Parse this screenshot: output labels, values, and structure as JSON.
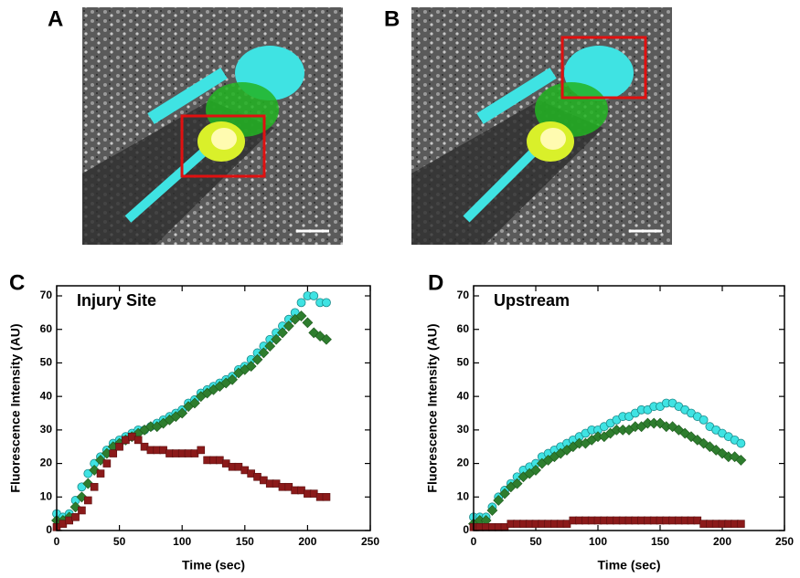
{
  "panels": [
    {
      "label": "A"
    },
    {
      "label": "B"
    }
  ],
  "chart_data": [
    {
      "type": "scatter",
      "panel_label": "C",
      "annotation": "Injury Site",
      "x_label": "Time (sec)",
      "y_label": "Fluorescence Intensity (AU)",
      "xlim": [
        0,
        250
      ],
      "ylim": [
        0,
        73
      ],
      "xticks": [
        0,
        50,
        100,
        150,
        200,
        250
      ],
      "yticks": [
        0,
        10,
        20,
        30,
        40,
        50,
        60,
        70
      ],
      "x": [
        0,
        5,
        10,
        15,
        20,
        25,
        30,
        35,
        40,
        45,
        50,
        55,
        60,
        65,
        70,
        75,
        80,
        85,
        90,
        95,
        100,
        105,
        110,
        115,
        120,
        125,
        130,
        135,
        140,
        145,
        150,
        155,
        160,
        165,
        170,
        175,
        180,
        185,
        190,
        195,
        200,
        205,
        210,
        215
      ],
      "series": [
        {
          "color": "#3fe3e3",
          "marker": "circle",
          "values": [
            5,
            4,
            5,
            9,
            13,
            17,
            20,
            22,
            24,
            26,
            27,
            28,
            29,
            30,
            30,
            31,
            32,
            33,
            34,
            35,
            36,
            38,
            39,
            41,
            42,
            43,
            44,
            45,
            46,
            48,
            49,
            51,
            53,
            55,
            57,
            59,
            61,
            63,
            65,
            68,
            70,
            70,
            68,
            68
          ]
        },
        {
          "color": "#2e7d2e",
          "marker": "diamond",
          "values": [
            3,
            3,
            4,
            7,
            10,
            14,
            18,
            21,
            23,
            25,
            26,
            27,
            28,
            29,
            30,
            31,
            31,
            32,
            33,
            34,
            35,
            37,
            38,
            40,
            41,
            42,
            43,
            44,
            45,
            47,
            48,
            49,
            51,
            53,
            55,
            57,
            59,
            61,
            63,
            64,
            62,
            59,
            58,
            57
          ]
        },
        {
          "color": "#8b1a1a",
          "marker": "square",
          "values": [
            1,
            2,
            3,
            4,
            6,
            9,
            13,
            17,
            20,
            23,
            25,
            27,
            28,
            27,
            25,
            24,
            24,
            24,
            23,
            23,
            23,
            23,
            23,
            24,
            21,
            21,
            21,
            20,
            19,
            19,
            18,
            17,
            16,
            15,
            14,
            14,
            13,
            13,
            12,
            12,
            11,
            11,
            10,
            10
          ]
        }
      ]
    },
    {
      "type": "scatter",
      "panel_label": "D",
      "annotation": "Upstream",
      "x_label": "Time (sec)",
      "y_label": "Fluorescence Intensity (AU)",
      "xlim": [
        0,
        250
      ],
      "ylim": [
        0,
        73
      ],
      "xticks": [
        0,
        50,
        100,
        150,
        200,
        250
      ],
      "yticks": [
        0,
        10,
        20,
        30,
        40,
        50,
        60,
        70
      ],
      "x": [
        0,
        5,
        10,
        15,
        20,
        25,
        30,
        35,
        40,
        45,
        50,
        55,
        60,
        65,
        70,
        75,
        80,
        85,
        90,
        95,
        100,
        105,
        110,
        115,
        120,
        125,
        130,
        135,
        140,
        145,
        150,
        155,
        160,
        165,
        170,
        175,
        180,
        185,
        190,
        195,
        200,
        205,
        210,
        215
      ],
      "series": [
        {
          "color": "#3fe3e3",
          "marker": "circle",
          "values": [
            4,
            4,
            4,
            7,
            10,
            12,
            14,
            16,
            18,
            19,
            20,
            22,
            23,
            24,
            25,
            26,
            27,
            28,
            29,
            30,
            30,
            31,
            32,
            33,
            34,
            34,
            35,
            36,
            36,
            37,
            37,
            38,
            38,
            37,
            36,
            35,
            34,
            33,
            31,
            30,
            29,
            28,
            27,
            26
          ]
        },
        {
          "color": "#2e7d2e",
          "marker": "diamond",
          "values": [
            2,
            3,
            3,
            6,
            9,
            11,
            13,
            14,
            16,
            17,
            18,
            20,
            21,
            22,
            23,
            24,
            25,
            26,
            26,
            27,
            28,
            28,
            29,
            30,
            30,
            30,
            31,
            31,
            32,
            32,
            32,
            31,
            31,
            30,
            29,
            28,
            27,
            26,
            25,
            24,
            23,
            22,
            22,
            21
          ]
        },
        {
          "color": "#8b1a1a",
          "marker": "square",
          "values": [
            1,
            1,
            1,
            1,
            1,
            1,
            2,
            2,
            2,
            2,
            2,
            2,
            2,
            2,
            2,
            2,
            3,
            3,
            3,
            3,
            3,
            3,
            3,
            3,
            3,
            3,
            3,
            3,
            3,
            3,
            3,
            3,
            3,
            3,
            3,
            3,
            3,
            2,
            2,
            2,
            2,
            2,
            2,
            2
          ]
        }
      ]
    }
  ]
}
